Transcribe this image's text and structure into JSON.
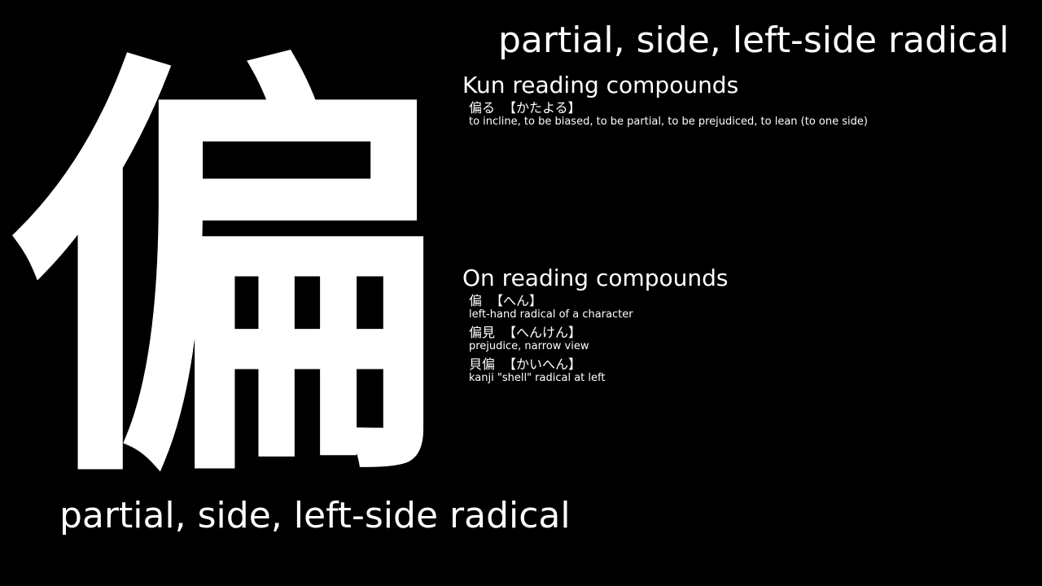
{
  "kanji": "偏",
  "meaning": "partial, side, left-side radical",
  "kun_section": {
    "title": "Kun reading compounds",
    "entries": [
      {
        "word": "偏る",
        "reading": "【かたよる】",
        "gloss": "to incline, to be biased, to be partial, to be prejudiced, to lean (to one side)"
      }
    ]
  },
  "on_section": {
    "title": "On reading compounds",
    "entries": [
      {
        "word": "偏",
        "reading": "【へん】",
        "gloss": "left-hand radical of a character"
      },
      {
        "word": "偏見",
        "reading": "【へんけん】",
        "gloss": "prejudice, narrow view"
      },
      {
        "word": "貝偏",
        "reading": "【かいへん】",
        "gloss": "kanji \"shell\" radical at left"
      }
    ]
  }
}
